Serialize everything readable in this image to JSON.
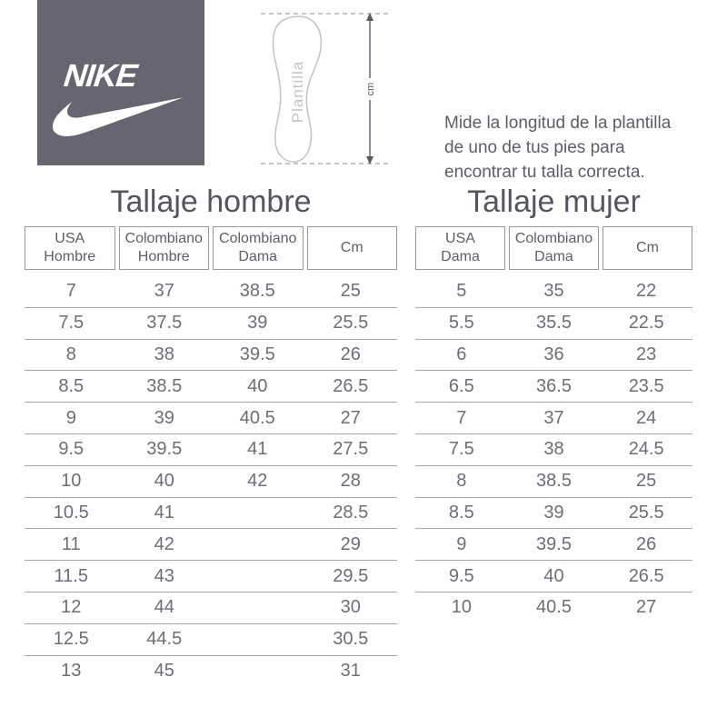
{
  "brand": {
    "name": "NIKE",
    "square_color": "#67656F"
  },
  "diagram": {
    "insole_label": "Plantilla",
    "unit_label": "cm"
  },
  "instructions": {
    "text": "Mide la longitud de la plantilla\nde uno de tus pies para\nencontrar tu talla correcta."
  },
  "men_table": {
    "title": "Tallaje hombre",
    "headers": [
      "USA\nHombre",
      "Colombiano\nHombre",
      "Colombiano\nDama",
      "Cm"
    ],
    "rows": [
      [
        "7",
        "37",
        "38.5",
        "25"
      ],
      [
        "7.5",
        "37.5",
        "39",
        "25.5"
      ],
      [
        "8",
        "38",
        "39.5",
        "26"
      ],
      [
        "8.5",
        "38.5",
        "40",
        "26.5"
      ],
      [
        "9",
        "39",
        "40.5",
        "27"
      ],
      [
        "9.5",
        "39.5",
        "41",
        "27.5"
      ],
      [
        "10",
        "40",
        "42",
        "28"
      ],
      [
        "10.5",
        "41",
        "",
        "28.5"
      ],
      [
        "11",
        "42",
        "",
        "29"
      ],
      [
        "11.5",
        "43",
        "",
        "29.5"
      ],
      [
        "12",
        "44",
        "",
        "30"
      ],
      [
        "12.5",
        "44.5",
        "",
        "30.5"
      ],
      [
        "13",
        "45",
        "",
        "31"
      ]
    ]
  },
  "women_table": {
    "title": "Tallaje mujer",
    "headers": [
      "USA\nDama",
      "Colombiano\nDama",
      "Cm"
    ],
    "rows": [
      [
        "5",
        "35",
        "22"
      ],
      [
        "5.5",
        "35.5",
        "22.5"
      ],
      [
        "6",
        "36",
        "23"
      ],
      [
        "6.5",
        "36.5",
        "23.5"
      ],
      [
        "7",
        "37",
        "24"
      ],
      [
        "7.5",
        "38",
        "24.5"
      ],
      [
        "8",
        "38.5",
        "25"
      ],
      [
        "8.5",
        "39",
        "25.5"
      ],
      [
        "9",
        "39.5",
        "26"
      ],
      [
        "9.5",
        "40",
        "26.5"
      ],
      [
        "10",
        "40.5",
        "27"
      ]
    ]
  },
  "colors": {
    "brand_square": "#67656F",
    "title_text": "#55555e",
    "body_text": "#6d6d75",
    "row_divider": "#a6a6ab",
    "header_border": "#97979e",
    "diagram_light": "#c4c4ca",
    "arrow": "#5a5a63"
  }
}
